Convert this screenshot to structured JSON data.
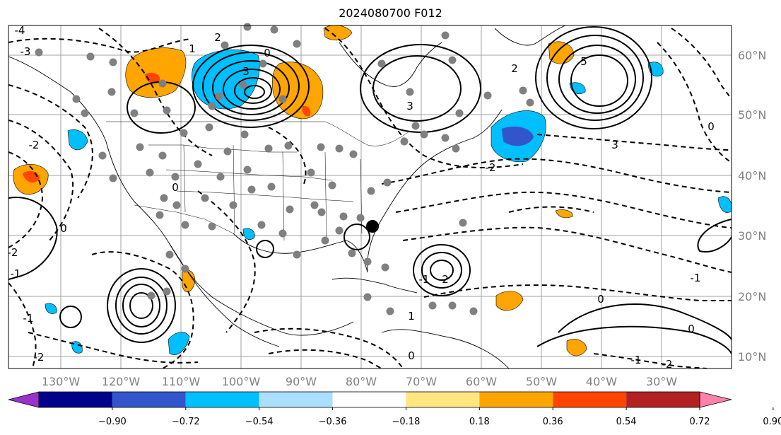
{
  "title": "2024080700 F012",
  "colors": {
    "contour": "#000000",
    "gridline": "#a0a0a0",
    "coastline": "#000000",
    "station": "#808080",
    "marker": "#000000"
  },
  "icons": {
    "station-dot": "circle",
    "storm-marker": "filled-circle"
  },
  "longitude_labels": [
    "130°W",
    "120°W",
    "110°W",
    "100°W",
    "90°W",
    "80°W",
    "70°W",
    "60°W",
    "50°W",
    "40°W",
    "30°W"
  ],
  "latitude_labels": [
    "60°N",
    "50°N",
    "40°N",
    "30°N",
    "20°N",
    "10°N"
  ],
  "contour_labels": [
    "-4",
    "-3",
    "-2",
    "2",
    "1",
    "3",
    "0",
    "-2",
    "-1",
    "0",
    "2",
    "3",
    "5",
    "-2",
    "-1",
    "0",
    "-2",
    "0",
    "-1",
    "2",
    "1",
    "0",
    "3",
    "-1",
    "0",
    "-2",
    "-1",
    "0"
  ],
  "colorbar": {
    "extend": "both",
    "tick_labels": [
      "−0.90",
      "−0.72",
      "−0.54",
      "−0.36",
      "−0.18",
      "0.18",
      "0.36",
      "0.54",
      "0.72",
      "0.90"
    ],
    "colors": [
      "#9933cc",
      "#00008b",
      "#3355cc",
      "#00bfff",
      "#aadfff",
      "#ffffff",
      "#ffe680",
      "#ffa500",
      "#ff4500",
      "#b22222",
      "#ff80aa"
    ]
  }
}
